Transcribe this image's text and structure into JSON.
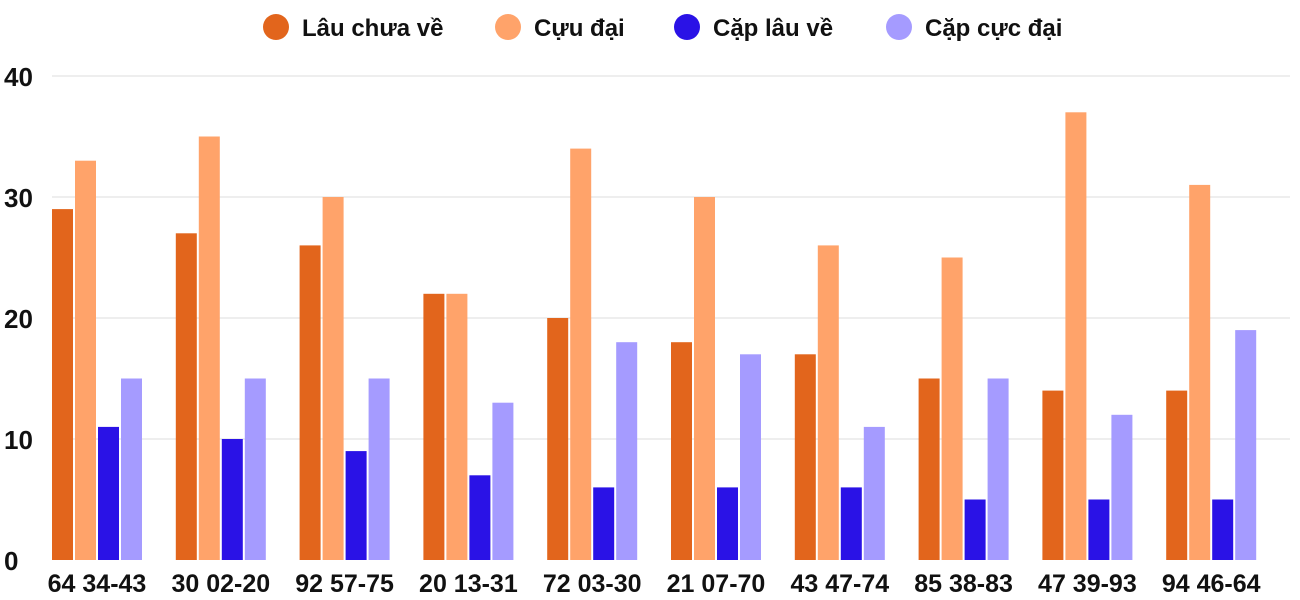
{
  "chart_data": {
    "type": "bar",
    "title": "",
    "xlabel": "",
    "ylabel": "",
    "ylim": [
      0,
      40
    ],
    "yticks": [
      "0",
      "10",
      "20",
      "30",
      "40"
    ],
    "grid": true,
    "legend_position": "top-center",
    "categories": [
      "64 34-43",
      "30 02-20",
      "92 57-75",
      "20 13-31",
      "72 03-30",
      "21 07-70",
      "43 47-74",
      "85 38-83",
      "47 39-93",
      "94 46-64"
    ],
    "series": [
      {
        "name": "Lâu chưa về",
        "color": "#e2651c",
        "values": [
          29,
          27,
          26,
          22,
          20,
          18,
          17,
          15,
          14,
          14
        ]
      },
      {
        "name": "Cựu đại",
        "color": "#ffa36a",
        "values": [
          33,
          35,
          30,
          22,
          34,
          30,
          26,
          25,
          37,
          31
        ]
      },
      {
        "name": "Cặp lâu về",
        "color": "#2a12e6",
        "values": [
          11,
          10,
          9,
          7,
          6,
          6,
          6,
          5,
          5,
          5
        ]
      },
      {
        "name": "Cặp cực đại",
        "color": "#a59bff",
        "values": [
          15,
          15,
          15,
          13,
          18,
          17,
          11,
          15,
          12,
          19
        ]
      }
    ]
  }
}
